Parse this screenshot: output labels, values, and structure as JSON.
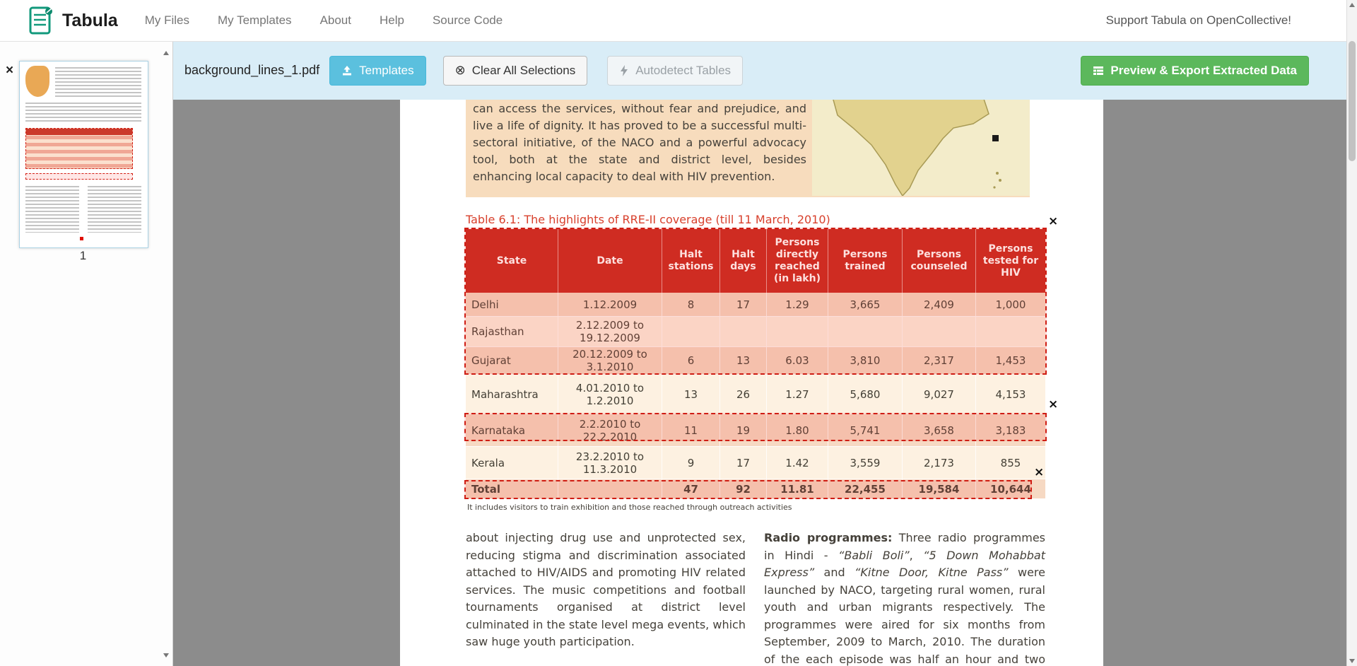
{
  "navbar": {
    "brand": "Tabula",
    "items": [
      "My Files",
      "My Templates",
      "About",
      "Help",
      "Source Code"
    ],
    "right_text": "Support Tabula on OpenCollective!"
  },
  "toolbar": {
    "filename": "background_lines_1.pdf",
    "templates_label": "Templates",
    "clear_label": "Clear All Selections",
    "autodetect_label": "Autodetect Tables",
    "export_label": "Preview & Export Extracted Data"
  },
  "sidebar": {
    "page_number": "1"
  },
  "icons": {
    "close": "×",
    "clear": "⊗"
  },
  "pdf": {
    "intro_paragraph": "can access the services, without fear and prejudice, and live a life of dignity. It has proved to be a successful multi-sectoral initiative, of the NACO and a powerful advocacy tool, both at the state and district level, besides enhancing local capacity to deal with HIV prevention.",
    "table_title": "Table 6.1: The highlights of RRE-II coverage (till 11 March, 2010)",
    "table": {
      "headers": [
        "State",
        "Date",
        "Halt stations",
        "Halt days",
        "Persons directly reached (in lakh)",
        "Persons trained",
        "Persons counseled",
        "Persons tested for HIV"
      ],
      "rows": [
        [
          "Delhi",
          "1.12.2009",
          "8",
          "17",
          "1.29",
          "3,665",
          "2,409",
          "1,000"
        ],
        [
          "Rajasthan",
          "2.12.2009 to 19.12.2009",
          "",
          "",
          "",
          "",
          "",
          ""
        ],
        [
          "Gujarat",
          "20.12.2009 to 3.1.2010",
          "6",
          "13",
          "6.03",
          "3,810",
          "2,317",
          "1,453"
        ],
        [
          "Maharashtra",
          "4.01.2010 to 1.2.2010",
          "13",
          "26",
          "1.27",
          "5,680",
          "9,027",
          "4,153"
        ],
        [
          "Karnataka",
          "2.2.2010 to 22.2.2010",
          "11",
          "19",
          "1.80",
          "5,741",
          "3,658",
          "3,183"
        ],
        [
          "Kerala",
          "23.2.2010 to 11.3.2010",
          "9",
          "17",
          "1.42",
          "3,559",
          "2,173",
          "855"
        ],
        [
          "Total",
          "",
          "47",
          "92",
          "11.81",
          "22,455",
          "19,584",
          "10,644"
        ]
      ]
    },
    "footnote": "It includes visitors to train exhibition and those reached through outreach activities",
    "left_column": "about injecting drug use and unprotected sex, reducing stigma and discrimination associated attached to HIV/AIDS and promoting HIV related services. The music competitions and football tournaments organised at district level culminated in the state level mega events, which saw huge youth participation.",
    "right_column": {
      "bold": "Radio programmes:",
      "t1": " Three radio programmes in Hindi - ",
      "i1": "“Babli Boli”",
      "t2": ", ",
      "i2": "“5 Down Mohabbat Express”",
      "t3": " and ",
      "i3": "“Kitne Door, Kitne Pass”",
      "t4": " were launched by NACO, targeting rural women, rural youth and urban migrants respectively. The programmes were aired for six months from September, 2009 to March, 2010. The duration of the each episode was half an hour and two episodes"
    }
  },
  "colors": {
    "toolbar_bg": "#d9edf7",
    "templates_button": "#5bc0de",
    "export_button": "#5cb85c",
    "table_header_red": "#c8271e",
    "selection_red": "#cf1d14",
    "page_peach": "#f7dcbd"
  }
}
